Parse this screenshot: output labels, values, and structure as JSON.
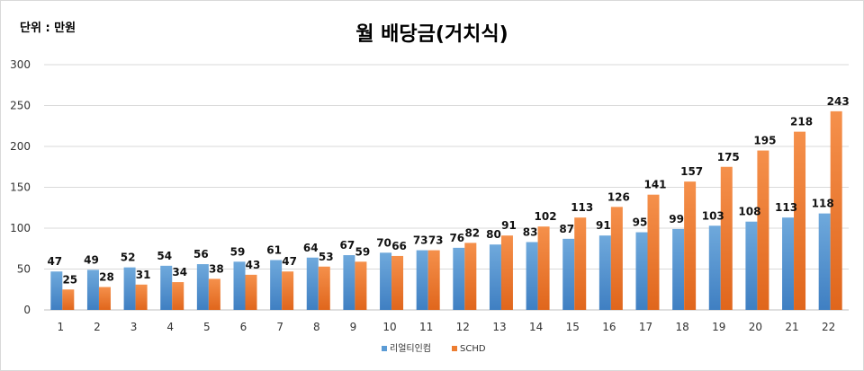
{
  "unit_label": "단위 : 만원",
  "title": "월 배당금(거치식)",
  "chart_data": {
    "type": "bar",
    "title": "월 배당금(거치식)",
    "categories": [
      "1",
      "2",
      "3",
      "4",
      "5",
      "6",
      "7",
      "8",
      "9",
      "10",
      "11",
      "12",
      "13",
      "14",
      "15",
      "16",
      "17",
      "18",
      "19",
      "20",
      "21",
      "22"
    ],
    "series": [
      {
        "name": "리얼티인컴",
        "color": "#5b9bd5",
        "values": [
          47,
          49,
          52,
          54,
          56,
          59,
          61,
          64,
          67,
          70,
          73,
          76,
          80,
          83,
          87,
          91,
          95,
          99,
          103,
          108,
          113,
          118
        ]
      },
      {
        "name": "SCHD",
        "color": "#ed7d31",
        "values": [
          25,
          28,
          31,
          34,
          38,
          43,
          47,
          53,
          59,
          66,
          73,
          82,
          91,
          102,
          113,
          126,
          141,
          157,
          175,
          195,
          218,
          243
        ]
      }
    ],
    "ylim": [
      0,
      300
    ],
    "yticks": [
      0,
      50,
      100,
      150,
      200,
      250,
      300
    ],
    "grid": true,
    "legend": "bottom",
    "data_labels": true
  }
}
